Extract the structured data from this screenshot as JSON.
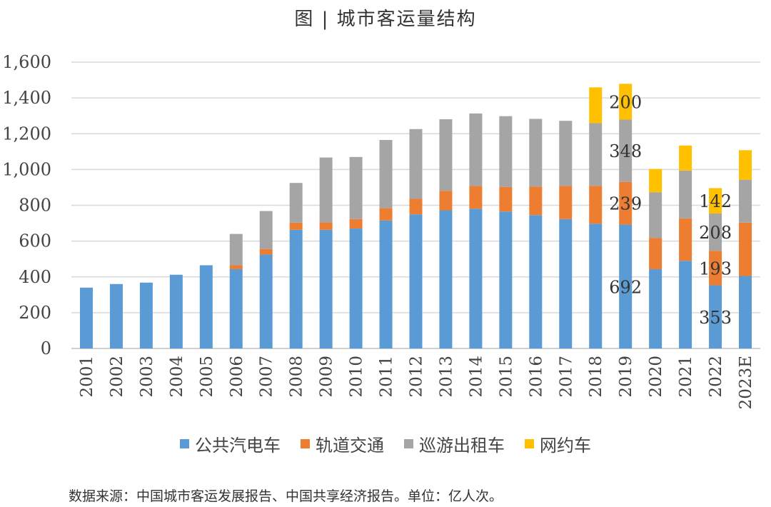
{
  "title": "图 | 城市客运量结构",
  "source_note": "数据来源：中国城市客运发展报告、中国共享经济报告。单位：亿人次。",
  "colors": {
    "bus": "#5B9BD5",
    "rail": "#ED7D31",
    "taxi": "#A5A5A5",
    "ridehail": "#FFC000",
    "grid": "#D9D9D9",
    "axis": "#BFBFBF"
  },
  "chart_data": {
    "type": "bar",
    "stacked": true,
    "categories": [
      "2001",
      "2002",
      "2003",
      "2004",
      "2005",
      "2006",
      "2007",
      "2008",
      "2009",
      "2010",
      "2011",
      "2012",
      "2013",
      "2014",
      "2015",
      "2016",
      "2017",
      "2018",
      "2019",
      "2020",
      "2021",
      "2022",
      "2023E"
    ],
    "series": [
      {
        "name": "公共汽电车",
        "color_key": "bus",
        "values": [
          340,
          360,
          368,
          412,
          465,
          443,
          525,
          663,
          663,
          670,
          715,
          749,
          772,
          781,
          765,
          745,
          723,
          697,
          692,
          443,
          490,
          353,
          405
        ]
      },
      {
        "name": "轨道交通",
        "color_key": "rail",
        "values": [
          0,
          0,
          0,
          0,
          0,
          22,
          30,
          40,
          42,
          53,
          70,
          87,
          109,
          127,
          138,
          160,
          185,
          212,
          239,
          175,
          237,
          193,
          298
        ]
      },
      {
        "name": "巡游出租车",
        "color_key": "taxi",
        "values": [
          0,
          0,
          0,
          0,
          0,
          175,
          213,
          222,
          362,
          347,
          380,
          390,
          400,
          405,
          395,
          378,
          364,
          350,
          348,
          255,
          267,
          208,
          240
        ]
      },
      {
        "name": "网约车",
        "color_key": "ridehail",
        "values": [
          0,
          0,
          0,
          0,
          0,
          0,
          0,
          0,
          0,
          0,
          0,
          0,
          0,
          0,
          0,
          0,
          0,
          200,
          200,
          130,
          140,
          142,
          165
        ]
      }
    ],
    "data_labels": [
      {
        "category": "2019",
        "series": "网约车",
        "text": "200"
      },
      {
        "category": "2019",
        "series": "巡游出租车",
        "text": "348"
      },
      {
        "category": "2019",
        "series": "轨道交通",
        "text": "239"
      },
      {
        "category": "2019",
        "series": "公共汽电车",
        "text": "692"
      },
      {
        "category": "2022",
        "series": "网约车",
        "text": "142"
      },
      {
        "category": "2022",
        "series": "巡游出租车",
        "text": "208"
      },
      {
        "category": "2022",
        "series": "轨道交通",
        "text": "193"
      },
      {
        "category": "2022",
        "series": "公共汽电车",
        "text": "353"
      }
    ],
    "yticks": [
      "0",
      "200",
      "400",
      "600",
      "800",
      "1,000",
      "1,200",
      "1,400",
      "1,600"
    ],
    "ylim": [
      0,
      1600
    ],
    "grid": true,
    "legend_position": "bottom"
  }
}
